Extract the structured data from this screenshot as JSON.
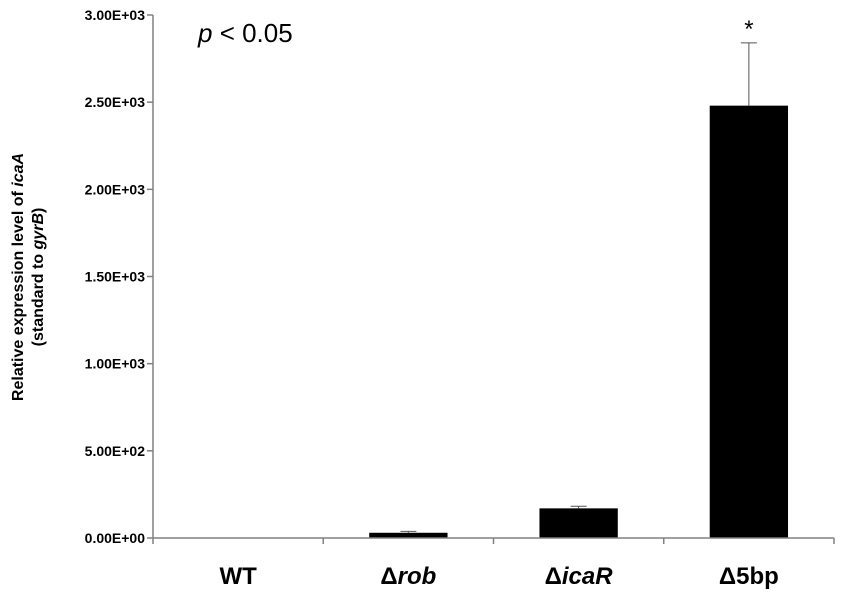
{
  "chart_data": {
    "type": "bar",
    "title": "",
    "xlabel": "",
    "ylabel_parts": [
      [
        {
          "text": "Relative expression level of ",
          "italic": false
        },
        {
          "text": "icaA",
          "italic": true
        }
      ],
      [
        {
          "text": "(standard to ",
          "italic": false
        },
        {
          "text": "gyrB",
          "italic": true
        },
        {
          "text": ")",
          "italic": false
        }
      ]
    ],
    "ylim": [
      0,
      3000
    ],
    "yticks": [
      0,
      500,
      1000,
      1500,
      2000,
      2500,
      3000
    ],
    "ytick_labels": [
      "0.00E+00",
      "5.00E+02",
      "1.00E+03",
      "1.50E+03",
      "2.00E+03",
      "2.50E+03",
      "3.00E+03"
    ],
    "categories": [
      {
        "parts": [
          {
            "text": "WT",
            "italic": false
          }
        ]
      },
      {
        "parts": [
          {
            "text": "Δ",
            "italic": false
          },
          {
            "text": "rob",
            "italic": true
          }
        ]
      },
      {
        "parts": [
          {
            "text": "Δ",
            "italic": false
          },
          {
            "text": "icaR",
            "italic": true
          }
        ]
      },
      {
        "parts": [
          {
            "text": "Δ5bp",
            "italic": false
          }
        ]
      }
    ],
    "values": [
      1,
      30,
      170,
      2480
    ],
    "errors": [
      0,
      8,
      12,
      360
    ],
    "bar_color": "#000000",
    "significance_marks": [
      "",
      "",
      "",
      "*"
    ],
    "annotation_parts": [
      {
        "text": "p",
        "italic": true
      },
      {
        "text": " < 0.05",
        "italic": false
      }
    ],
    "grid": false,
    "legend": "none"
  }
}
